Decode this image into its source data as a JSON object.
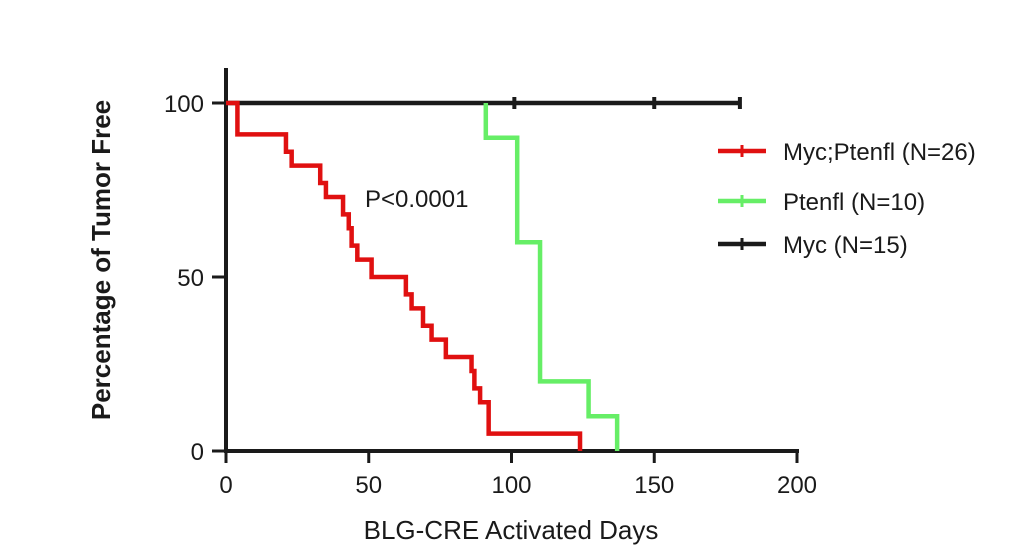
{
  "chart_data": {
    "type": "line",
    "subtype": "kaplan-meier step",
    "xlabel": "BLG-CRE Activated Days",
    "ylabel": "Percentage of Tumor Free",
    "xlim": [
      0,
      200
    ],
    "ylim": [
      0,
      100
    ],
    "xticks": [
      0,
      50,
      100,
      150,
      200
    ],
    "yticks": [
      0,
      50,
      100
    ],
    "grid": false,
    "legend_position": "right",
    "annotation": "P<0.0001",
    "series": [
      {
        "name": "Myc;Ptenfl (N=26)",
        "color": "#e01010",
        "x": [
          0,
          4,
          4,
          21,
          21,
          23,
          23,
          33,
          33,
          35,
          35,
          41,
          41,
          43,
          43,
          44,
          44,
          46,
          46,
          51,
          51,
          63,
          63,
          65,
          65,
          69,
          69,
          72,
          72,
          77,
          77,
          86,
          86,
          87,
          87,
          89,
          89,
          92,
          92,
          124,
          124
        ],
        "y": [
          100,
          100,
          91,
          91,
          86,
          86,
          82,
          82,
          77,
          77,
          73,
          73,
          68,
          68,
          64,
          64,
          59,
          59,
          55,
          55,
          50,
          50,
          45,
          45,
          41,
          41,
          36,
          36,
          32,
          32,
          27,
          27,
          23,
          23,
          18,
          18,
          14,
          14,
          5,
          5,
          0
        ]
      },
      {
        "name": "Ptenfl (N=10)",
        "color": "#66ee66",
        "x": [
          91,
          91,
          102,
          102,
          110,
          110,
          127,
          127,
          137,
          137
        ],
        "y": [
          100,
          90,
          90,
          60,
          60,
          20,
          20,
          10,
          10,
          0
        ]
      },
      {
        "name": "Myc (N=15)",
        "color": "#1a1a1a",
        "x": [
          0,
          180
        ],
        "y": [
          100,
          100
        ],
        "censored_x": [
          101,
          150,
          180
        ]
      }
    ]
  }
}
